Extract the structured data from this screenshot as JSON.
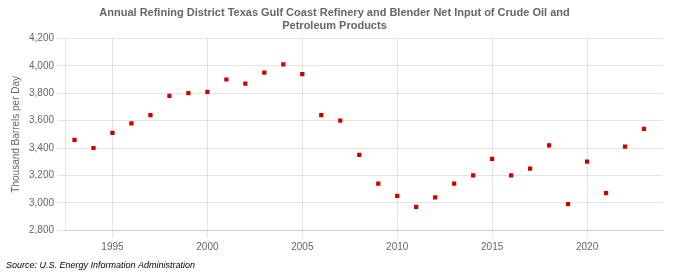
{
  "chart_data": {
    "type": "scatter",
    "title": "Annual Refining District Texas Gulf Coast Refinery and Blender Net Input of Crude Oil and\nPetroleum Products",
    "ylabel": "Thousand Barrels per Day",
    "source": "Source: U.S. Energy Information Administration",
    "x": [
      1993,
      1994,
      1995,
      1996,
      1997,
      1998,
      1999,
      2000,
      2001,
      2002,
      2003,
      2004,
      2005,
      2006,
      2007,
      2008,
      2009,
      2010,
      2011,
      2012,
      2013,
      2014,
      2015,
      2016,
      2017,
      2018,
      2019,
      2020,
      2021,
      2022,
      2023
    ],
    "values": [
      3460,
      3400,
      3510,
      3580,
      3640,
      3780,
      3800,
      3810,
      3900,
      3870,
      3950,
      4010,
      3940,
      3640,
      3600,
      3350,
      3140,
      3050,
      2970,
      3040,
      3140,
      3200,
      3320,
      3200,
      3250,
      3420,
      2990,
      3300,
      3070,
      3410,
      3540
    ],
    "color": "#cc0000",
    "marker": "square",
    "xlim": [
      1992.5,
      2024
    ],
    "xticks": [
      1995,
      2000,
      2005,
      2010,
      2015,
      2020
    ],
    "ylim": [
      2800,
      4200
    ],
    "yticks": [
      {
        "value": 2800,
        "label": "2,800"
      },
      {
        "value": 3000,
        "label": "3,000"
      },
      {
        "value": 3200,
        "label": "3,200"
      },
      {
        "value": 3400,
        "label": "3,400"
      },
      {
        "value": 3600,
        "label": "3,600"
      },
      {
        "value": 3800,
        "label": "3,800"
      },
      {
        "value": 4000,
        "label": "4,000"
      },
      {
        "value": 4200,
        "label": "4,200"
      }
    ],
    "grid": true
  }
}
